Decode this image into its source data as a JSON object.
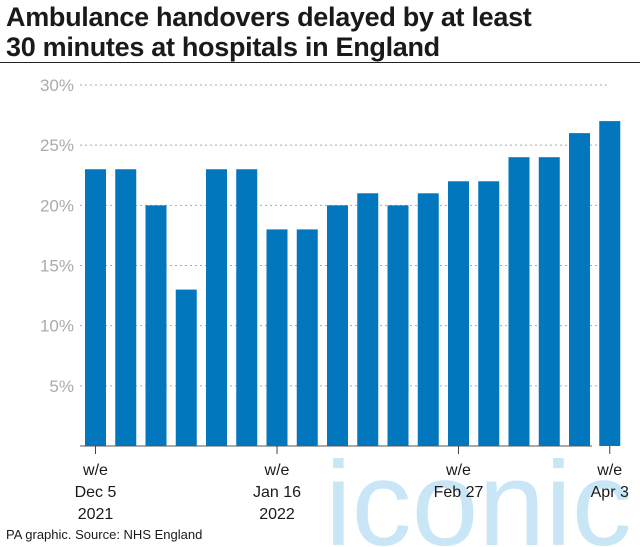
{
  "title_lines": [
    "Ambulance handovers delayed by at least",
    "30 minutes at hospitals in England"
  ],
  "source": "PA graphic. Source: NHS England",
  "watermark_text": "iconic",
  "colors": {
    "bar": "#0277bd",
    "grid": "#aaaaaa",
    "tick_text": "#aaaaaa",
    "watermark": "#c9e6f7"
  },
  "chart_data": {
    "type": "bar",
    "ylim": [
      0,
      30
    ],
    "yticks": [
      "30%",
      "25%",
      "20%",
      "15%",
      "10%",
      "5%"
    ],
    "ytick_values": [
      30,
      25,
      20,
      15,
      10,
      5
    ],
    "values": [
      23,
      23,
      20,
      13,
      23,
      23,
      18,
      18,
      20,
      21,
      20,
      21,
      22,
      22,
      24,
      24,
      26,
      27
    ],
    "x_labels": [
      {
        "index": 0,
        "lines": [
          "w/e",
          "Dec 5",
          "2021"
        ]
      },
      {
        "index": 6,
        "lines": [
          "w/e",
          "Jan 16",
          "2022"
        ]
      },
      {
        "index": 12,
        "lines": [
          "w/e",
          "Feb 27"
        ]
      },
      {
        "index": 17,
        "lines": [
          "w/e",
          "Apr 3"
        ]
      }
    ],
    "grid": true,
    "legend": "none"
  }
}
